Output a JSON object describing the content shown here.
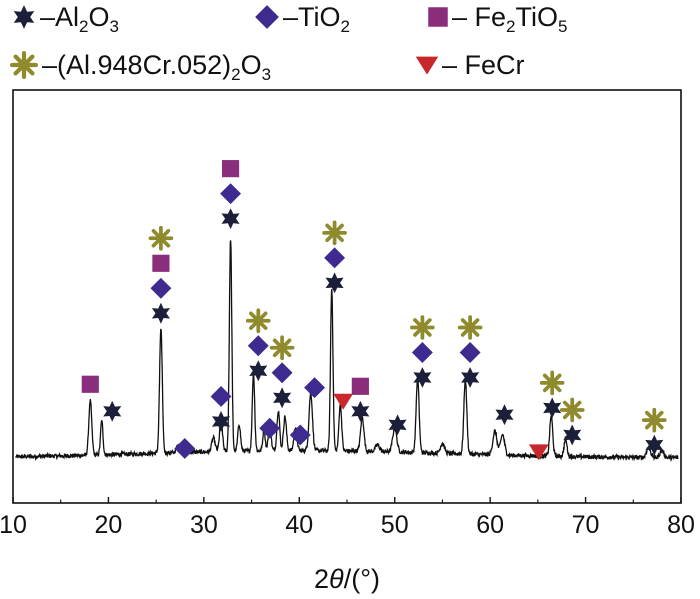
{
  "chart_data": {
    "type": "line",
    "title": "",
    "xlabel_parts": [
      "2",
      "θ",
      "/(°)"
    ],
    "ylabel": "",
    "xlim": [
      10,
      80
    ],
    "ylim": [
      0,
      100
    ],
    "x_ticks": [
      10,
      20,
      30,
      40,
      50,
      60,
      70,
      80
    ],
    "grid": false,
    "y_ticks_shown": false,
    "legend_position": "top",
    "legend": [
      {
        "id": "al2o3",
        "parts": [
          "–Al",
          "2",
          "O",
          "3"
        ],
        "marker": "star6",
        "color": "#1c1f3a"
      },
      {
        "id": "tio2",
        "parts": [
          "–TiO",
          "2"
        ],
        "marker": "diamond",
        "color": "#3f2a8f"
      },
      {
        "id": "fe2tio5",
        "parts": [
          "– Fe",
          "2",
          "TiO",
          "5"
        ],
        "marker": "square",
        "color": "#8a2d7d"
      },
      {
        "id": "alcr",
        "parts": [
          "–(Al.948Cr.052)",
          "2",
          "O",
          "3"
        ],
        "marker": "asterisk",
        "color": "#8f8a2c"
      },
      {
        "id": "fecr",
        "parts": [
          "– FeCr"
        ],
        "marker": "triangle-down",
        "color": "#c8282b"
      }
    ],
    "pattern_peaks": [
      {
        "x": 18.1,
        "h": 16,
        "w": 0.22
      },
      {
        "x": 19.3,
        "h": 10,
        "w": 0.18
      },
      {
        "x": 25.5,
        "h": 37,
        "w": 0.2
      },
      {
        "x": 27.3,
        "h": 2,
        "w": 0.25
      },
      {
        "x": 31.0,
        "h": 4,
        "w": 0.25
      },
      {
        "x": 31.8,
        "h": 9,
        "w": 0.22
      },
      {
        "x": 32.8,
        "h": 63,
        "w": 0.18
      },
      {
        "x": 33.7,
        "h": 8,
        "w": 0.2
      },
      {
        "x": 35.2,
        "h": 23,
        "w": 0.18
      },
      {
        "x": 36.3,
        "h": 6,
        "w": 0.18
      },
      {
        "x": 36.9,
        "h": 8,
        "w": 0.2
      },
      {
        "x": 37.8,
        "h": 12,
        "w": 0.2
      },
      {
        "x": 38.5,
        "h": 10,
        "w": 0.22
      },
      {
        "x": 39.6,
        "h": 7,
        "w": 0.22
      },
      {
        "x": 41.2,
        "h": 17,
        "w": 0.25
      },
      {
        "x": 43.4,
        "h": 48,
        "w": 0.18
      },
      {
        "x": 44.3,
        "h": 14,
        "w": 0.2
      },
      {
        "x": 46.6,
        "h": 10,
        "w": 0.25
      },
      {
        "x": 48.2,
        "h": 2,
        "w": 0.3
      },
      {
        "x": 50.0,
        "h": 7,
        "w": 0.3
      },
      {
        "x": 52.4,
        "h": 22,
        "w": 0.22
      },
      {
        "x": 55.0,
        "h": 3,
        "w": 0.3
      },
      {
        "x": 57.4,
        "h": 22,
        "w": 0.22
      },
      {
        "x": 60.5,
        "h": 7,
        "w": 0.3
      },
      {
        "x": 61.3,
        "h": 6,
        "w": 0.3
      },
      {
        "x": 66.4,
        "h": 12,
        "w": 0.22
      },
      {
        "x": 67.9,
        "h": 5,
        "w": 0.22
      },
      {
        "x": 76.6,
        "h": 3,
        "w": 0.3
      },
      {
        "x": 78.0,
        "h": 2,
        "w": 0.3
      }
    ],
    "peak_markers": [
      {
        "x": 18.1,
        "y": 23,
        "stack": [
          "fe2tio5"
        ]
      },
      {
        "x": 20.4,
        "y": 15,
        "stack": [
          "al2o3"
        ]
      },
      {
        "x": 25.5,
        "y": 44,
        "stack": [
          "al2o3",
          "tio2",
          "fe2tio5",
          "alcr"
        ]
      },
      {
        "x": 28.0,
        "y": 4,
        "stack": [
          "tio2"
        ]
      },
      {
        "x": 31.8,
        "y": 12,
        "stack": [
          "al2o3",
          "tio2"
        ]
      },
      {
        "x": 32.8,
        "y": 72,
        "stack": [
          "al2o3",
          "tio2",
          "fe2tio5"
        ]
      },
      {
        "x": 35.7,
        "y": 27,
        "stack": [
          "al2o3",
          "tio2",
          "alcr"
        ]
      },
      {
        "x": 36.9,
        "y": 10,
        "stack": [
          "tio2"
        ]
      },
      {
        "x": 38.2,
        "y": 19,
        "stack": [
          "al2o3",
          "tio2",
          "alcr"
        ]
      },
      {
        "x": 40.1,
        "y": 8,
        "stack": [
          "tio2"
        ]
      },
      {
        "x": 41.6,
        "y": 22,
        "stack": [
          "tio2"
        ]
      },
      {
        "x": 43.7,
        "y": 53,
        "stack": [
          "al2o3",
          "tio2",
          "alcr"
        ]
      },
      {
        "x": 44.6,
        "y": 18,
        "stack": [
          "fecr"
        ]
      },
      {
        "x": 46.4,
        "y": 15,
        "stack": [
          "al2o3",
          "fe2tio5"
        ]
      },
      {
        "x": 50.3,
        "y": 11,
        "stack": [
          "al2o3"
        ]
      },
      {
        "x": 52.9,
        "y": 25,
        "stack": [
          "al2o3",
          "tio2",
          "alcr"
        ]
      },
      {
        "x": 57.9,
        "y": 25,
        "stack": [
          "al2o3",
          "tio2",
          "alcr"
        ]
      },
      {
        "x": 61.5,
        "y": 14,
        "stack": [
          "al2o3"
        ]
      },
      {
        "x": 65.1,
        "y": 3,
        "stack": [
          "fecr"
        ]
      },
      {
        "x": 66.5,
        "y": 16,
        "stack": [
          "al2o3",
          "alcr"
        ]
      },
      {
        "x": 68.6,
        "y": 8,
        "stack": [
          "al2o3",
          "alcr"
        ]
      },
      {
        "x": 77.2,
        "y": 5,
        "stack": [
          "al2o3",
          "alcr"
        ]
      }
    ]
  }
}
